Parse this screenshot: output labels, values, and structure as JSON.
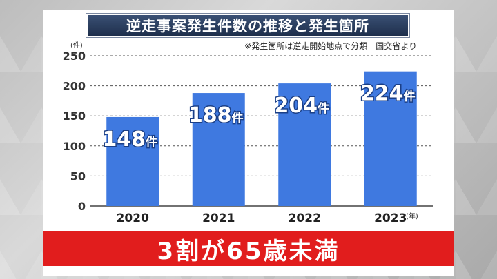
{
  "colors": {
    "bar": "#3f79e0",
    "banner": "#e11d1d",
    "title_bg": "#26395a"
  },
  "chart_data": {
    "type": "bar",
    "title": "逆走事案発生件数の推移と発生箇所",
    "note": "※発生箇所は逆走開始地点で分類　国交省より",
    "y_unit": "(件)",
    "x_unit": "(年)",
    "categories": [
      "2020",
      "2021",
      "2022",
      "2023"
    ],
    "values": [
      148,
      188,
      204,
      224
    ],
    "value_labels": [
      "148件",
      "188件",
      "204件",
      "224件"
    ],
    "ylim": [
      0,
      250
    ],
    "yticks": [
      0,
      50,
      100,
      150,
      200,
      250
    ],
    "grid": true
  },
  "banner": {
    "text": "3割が65歳未満"
  }
}
